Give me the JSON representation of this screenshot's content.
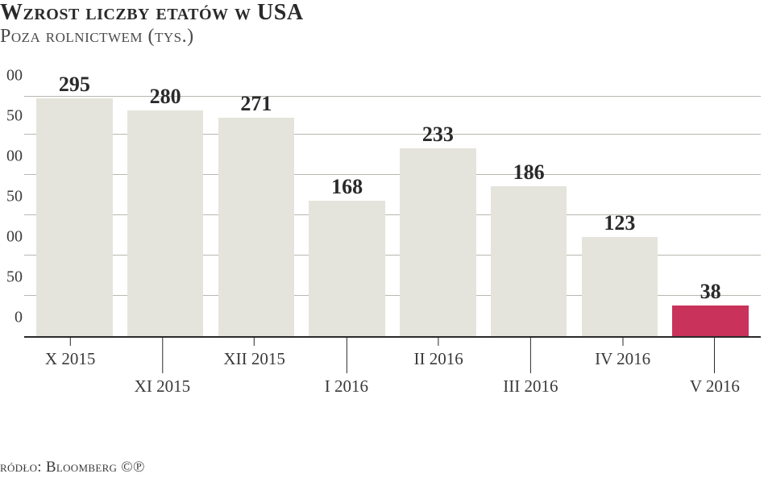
{
  "title": "Wzrost liczby etatów w USA",
  "subtitle": "Poza rolnictwem (tys.)",
  "source": "ródło: Bloomberg ©℗",
  "chart": {
    "type": "bar",
    "ylim": [
      0,
      300
    ],
    "ytick_step": 50,
    "yticks_visible": [
      "0",
      "50",
      "00",
      "50",
      "00",
      "50",
      "00"
    ],
    "grid_color": "#b8b8b0",
    "baseline_color": "#2a2a2a",
    "background_color": "#ffffff",
    "bar_width_pct": 84,
    "value_label_fontsize": 26,
    "value_label_weight": "bold",
    "value_label_color": "#2a2a2a",
    "xlabel_fontsize": 21,
    "xlabel_color": "#3a3a3a",
    "bars": [
      {
        "label": "X 2015",
        "value": 295,
        "color": "#e5e4dc",
        "tick_row": 0
      },
      {
        "label": "XI 2015",
        "value": 280,
        "color": "#e5e4dc",
        "tick_row": 1
      },
      {
        "label": "XII 2015",
        "value": 271,
        "color": "#e5e4dc",
        "tick_row": 0
      },
      {
        "label": "I 2016",
        "value": 168,
        "color": "#e5e4dc",
        "tick_row": 1
      },
      {
        "label": "II 2016",
        "value": 233,
        "color": "#e5e4dc",
        "tick_row": 0
      },
      {
        "label": "III 2016",
        "value": 186,
        "color": "#e5e4dc",
        "tick_row": 1
      },
      {
        "label": "IV 2016",
        "value": 123,
        "color": "#e5e4dc",
        "tick_row": 0
      },
      {
        "label": "V 2016",
        "value": 38,
        "color": "#c9335b",
        "tick_row": 1
      }
    ]
  }
}
